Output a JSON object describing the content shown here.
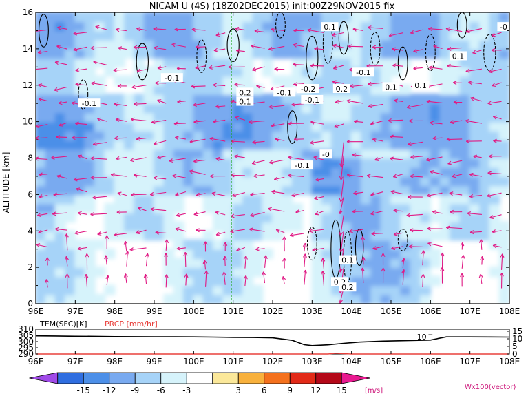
{
  "chart_data": [
    {
      "type": "heatmap",
      "title": "NICAM U (4S) (18Z02DEC2015) init:00Z29NOV2015 fix",
      "ylabel": "ALTITUDE [km]",
      "xlim": [
        96,
        108
      ],
      "ylim": [
        0,
        16
      ],
      "x_ticks": [
        "96E",
        "97E",
        "98E",
        "99E",
        "100E",
        "101E",
        "102E",
        "103E",
        "104E",
        "105E",
        "106E",
        "107E",
        "108E"
      ],
      "y_ticks": [
        "0",
        "2",
        "4",
        "6",
        "8",
        "10",
        "12",
        "14",
        "16"
      ],
      "reference_line_x": 100.95,
      "contour_labels": [
        {
          "x": 99.45,
          "y": 12.4,
          "text": "-0.1"
        },
        {
          "x": 97.35,
          "y": 11.0,
          "text": "-0.1"
        },
        {
          "x": 101.3,
          "y": 11.6,
          "text": "0.2"
        },
        {
          "x": 101.3,
          "y": 11.1,
          "text": "0.1"
        },
        {
          "x": 102.3,
          "y": 11.6,
          "text": "-0.1"
        },
        {
          "x": 102.9,
          "y": 11.8,
          "text": "-0.2"
        },
        {
          "x": 103.0,
          "y": 11.2,
          "text": "-0.1"
        },
        {
          "x": 103.75,
          "y": 11.8,
          "text": "0.2"
        },
        {
          "x": 104.3,
          "y": 12.7,
          "text": "-0.1"
        },
        {
          "x": 103.45,
          "y": 15.2,
          "text": "0.1"
        },
        {
          "x": 105.0,
          "y": 11.9,
          "text": "0.1"
        },
        {
          "x": 105.75,
          "y": 12.0,
          "text": "0.1"
        },
        {
          "x": 106.7,
          "y": 13.6,
          "text": "0.1"
        },
        {
          "x": 107.85,
          "y": 15.2,
          "text": "-0"
        },
        {
          "x": 102.75,
          "y": 7.6,
          "text": "-0.1"
        },
        {
          "x": 103.35,
          "y": 8.2,
          "text": "-0"
        },
        {
          "x": 103.9,
          "y": 2.4,
          "text": "0.1"
        },
        {
          "x": 103.7,
          "y": 1.2,
          "text": "0.2"
        },
        {
          "x": 103.9,
          "y": 0.9,
          "text": "0.2"
        }
      ]
    },
    {
      "type": "line",
      "legend": [
        {
          "text": "TEM(SFC)[K]",
          "color": "#000000"
        },
        {
          "text": "PRCP [mm/hr]",
          "color": "#e8413c"
        }
      ],
      "left_ticks": [
        "310",
        "305",
        "300",
        "295",
        "290"
      ],
      "right_ticks": [
        "15",
        "10",
        "5",
        "0"
      ],
      "x_ticks": [
        "96E",
        "97E",
        "98E",
        "99E",
        "100E",
        "101E",
        "102E",
        "103E",
        "104E",
        "105E",
        "106E",
        "107E",
        "108E"
      ],
      "annotation": "10",
      "series": [
        {
          "name": "TEM(SFC)[K]",
          "x": [
            96.0,
            96.5,
            97.0,
            97.5,
            98.0,
            99.0,
            100.0,
            100.5,
            101.0,
            101.5,
            102.0,
            102.5,
            102.8,
            103.0,
            103.4,
            103.8,
            104.2,
            104.8,
            105.5,
            106.0,
            106.4,
            107.0,
            107.5,
            108.0
          ],
          "values": [
            304.6,
            304.5,
            304.3,
            304.2,
            304.0,
            303.9,
            303.8,
            303.6,
            303.4,
            303.3,
            303.0,
            301.0,
            297.5,
            296.8,
            297.4,
            298.6,
            299.6,
            300.4,
            300.9,
            301.2,
            303.8,
            303.8,
            303.7,
            303.6
          ]
        },
        {
          "name": "PRCP [mm/hr]",
          "x": [
            96,
            103.4,
            103.6,
            103.8,
            104.0,
            108
          ],
          "values": [
            0,
            0,
            0.6,
            0.3,
            0,
            0
          ]
        }
      ]
    },
    {
      "type": "colorbar",
      "tick_labels": [
        "-15",
        "-12",
        "-9",
        "-6",
        "-3",
        "3",
        "6",
        "9",
        "12",
        "15"
      ],
      "colors": [
        "#a04ae8",
        "#2f6ee0",
        "#4c8fe8",
        "#79aaf0",
        "#a6d3f8",
        "#d6f3fb",
        "#ffffff",
        "#fbe89a",
        "#f8b13d",
        "#f4711d",
        "#e22a18",
        "#b40818",
        "#e81a90"
      ],
      "unit": "[m/s]",
      "vector_label": "Wx100(vector)"
    }
  ]
}
